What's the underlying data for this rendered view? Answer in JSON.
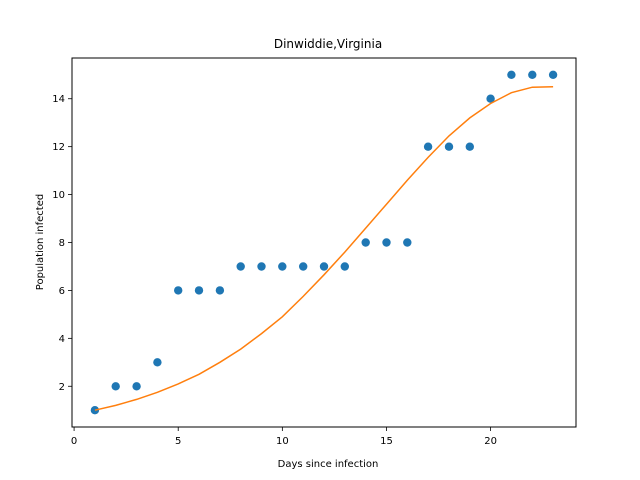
{
  "chart_data": {
    "type": "scatter",
    "title": "Dinwiddie,Virginia",
    "xlabel": "Days since infection",
    "ylabel": "Population infected",
    "xlim": [
      -0.1,
      24.1
    ],
    "ylim": [
      0.3,
      15.7
    ],
    "xticks": [
      0,
      5,
      10,
      15,
      20
    ],
    "yticks": [
      2,
      4,
      6,
      8,
      10,
      12,
      14
    ],
    "grid": false,
    "series": [
      {
        "kind": "scatter",
        "color": "#1f77b4",
        "x": [
          1,
          2,
          3,
          4,
          5,
          6,
          7,
          8,
          9,
          10,
          11,
          12,
          13,
          14,
          15,
          16,
          17,
          18,
          19,
          20,
          21,
          22,
          23
        ],
        "y": [
          1,
          2,
          2,
          3,
          6,
          6,
          6,
          7,
          7,
          7,
          7,
          7,
          7,
          8,
          8,
          8,
          12,
          12,
          12,
          14,
          15,
          15,
          15
        ]
      },
      {
        "kind": "line",
        "color": "#ff7f0e",
        "x": [
          1,
          2,
          3,
          4,
          5,
          6,
          7,
          8,
          9,
          10,
          11,
          12,
          13,
          14,
          15,
          16,
          17,
          18,
          19,
          20,
          21,
          22,
          23
        ],
        "y": [
          1.0,
          1.2,
          1.45,
          1.75,
          2.1,
          2.5,
          3.0,
          3.55,
          4.2,
          4.9,
          5.75,
          6.65,
          7.6,
          8.6,
          9.6,
          10.6,
          11.55,
          12.45,
          13.2,
          13.8,
          14.25,
          14.48,
          14.5
        ]
      }
    ]
  }
}
